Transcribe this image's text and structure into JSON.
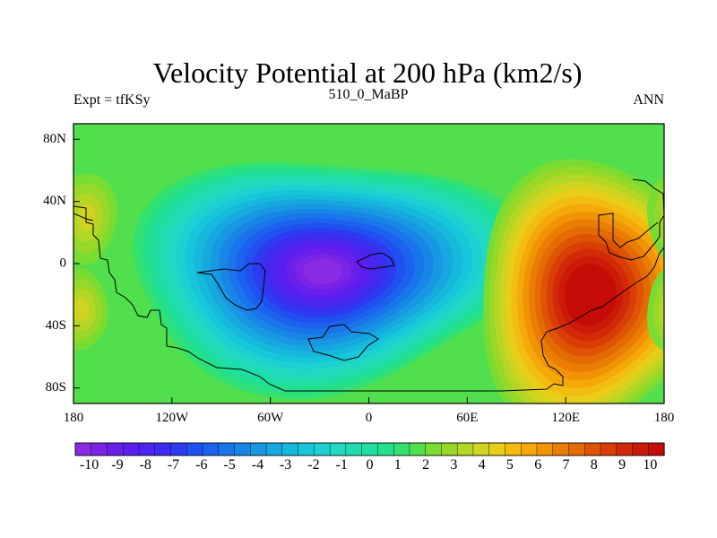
{
  "chart_data": {
    "type": "heatmap",
    "title": "Velocity Potential at 200 hPa (km2/s)",
    "subtitle": "510_0_MaBP",
    "left_label": "Expt = tfKSy",
    "right_label": "ANN",
    "x_ticks": [
      "180",
      "120W",
      "60W",
      "0",
      "60E",
      "120E",
      "180"
    ],
    "x_tick_values": [
      -180,
      -120,
      -60,
      0,
      60,
      120,
      180
    ],
    "y_ticks": [
      "80N",
      "40N",
      "0",
      "40S",
      "80S"
    ],
    "y_tick_values": [
      80,
      40,
      0,
      -40,
      -80
    ],
    "xlim": [
      -180,
      180
    ],
    "ylim": [
      -90,
      90
    ],
    "colorbar": {
      "min": -10.5,
      "max": 10.5,
      "step": 0.5,
      "labels": [
        "-10",
        "-9",
        "-8",
        "-7",
        "-6",
        "-5",
        "-4",
        "-3",
        "-2",
        "-1",
        "0",
        "1",
        "2",
        "3",
        "4",
        "5",
        "6",
        "7",
        "8",
        "9",
        "10"
      ],
      "colors": [
        "#8A2BE2",
        "#7B23E6",
        "#6A1FEA",
        "#5A1FEE",
        "#4B24F0",
        "#3B2CF0",
        "#2D3AF0",
        "#2050F0",
        "#1C62EE",
        "#1A74EA",
        "#1886E6",
        "#1898E2",
        "#16A8DE",
        "#16B8DC",
        "#18C6DA",
        "#1CD2D0",
        "#1FD9C2",
        "#20DCB2",
        "#20DEA0",
        "#24E08A",
        "#34E070",
        "#52DF4E",
        "#78DC32",
        "#98D828",
        "#B4D624",
        "#D0D420",
        "#E8CE18",
        "#F2BC10",
        "#F4A80A",
        "#F09406",
        "#EA7E04",
        "#E46A04",
        "#DE5404",
        "#D83E06",
        "#D22A08",
        "#CC1A08",
        "#C60C06"
      ]
    },
    "fields": {
      "background_value": 0.3,
      "centers": [
        {
          "name": "pacific-minimum",
          "lon": -28,
          "lat": -5,
          "value": -10.3
        },
        {
          "name": "asian-maximum",
          "lon": 135,
          "lat": -20,
          "value": 8.9
        },
        {
          "name": "eastern-pacific-maximum",
          "lon": -172,
          "lat": 30,
          "value": 2.6
        },
        {
          "name": "southern-pacific-maximum",
          "lon": -175,
          "lat": -30,
          "value": 2.4
        }
      ]
    }
  }
}
